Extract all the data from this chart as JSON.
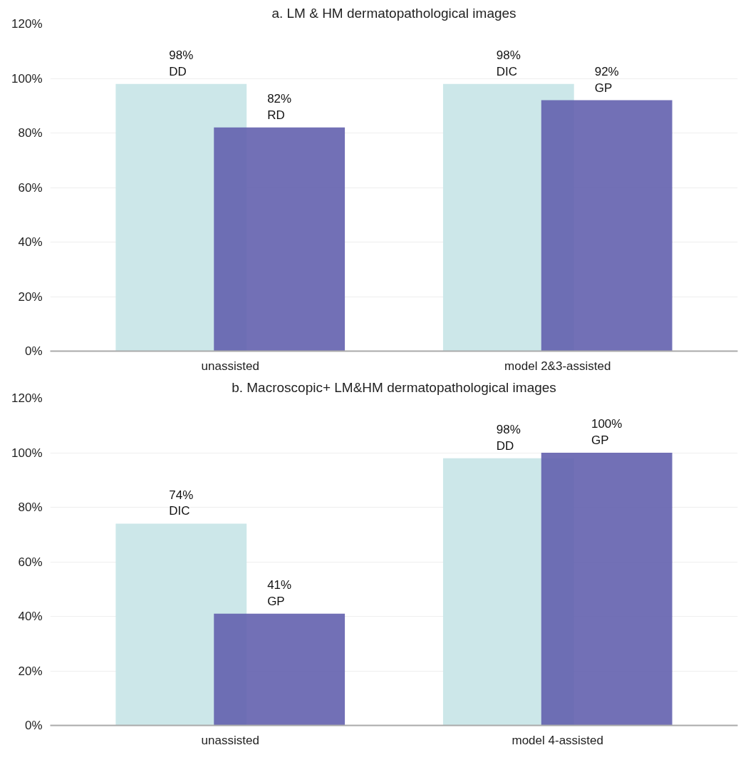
{
  "chart_data": [
    {
      "type": "bar",
      "title": "a. LM & HM dermatopathological images",
      "categories": [
        "unassisted",
        "model 2&3-assisted"
      ],
      "series": [
        {
          "color": "#cce7e9",
          "values": [
            98,
            98
          ],
          "value_labels": [
            "98%\nDD",
            "98%\nDIC"
          ]
        },
        {
          "color": "#6361ae",
          "values": [
            82,
            92
          ],
          "value_labels": [
            "82%\nRD",
            "92%\nGP"
          ]
        }
      ],
      "ylim": [
        0,
        120
      ],
      "yticks": [
        {
          "value": 0,
          "label": "0%"
        },
        {
          "value": 20,
          "label": "20%"
        },
        {
          "value": 40,
          "label": "40%"
        },
        {
          "value": 60,
          "label": "60%"
        },
        {
          "value": 80,
          "label": "80%"
        },
        {
          "value": 100,
          "label": "100%"
        },
        {
          "value": 120,
          "label": "120%"
        }
      ],
      "grid": "y"
    },
    {
      "type": "bar",
      "title": "b. Macroscopic+ LM&HM dermatopathological images",
      "categories": [
        "unassisted",
        "model 4-assisted"
      ],
      "series": [
        {
          "color": "#cce7e9",
          "values": [
            74,
            98
          ],
          "value_labels": [
            "74%\nDIC",
            "98%\nDD"
          ]
        },
        {
          "color": "#6361ae",
          "values": [
            41,
            100
          ],
          "value_labels": [
            "41%\nGP",
            "100%\nGP"
          ]
        }
      ],
      "ylim": [
        0,
        120
      ],
      "yticks": [
        {
          "value": 0,
          "label": "0%"
        },
        {
          "value": 20,
          "label": "20%"
        },
        {
          "value": 40,
          "label": "40%"
        },
        {
          "value": 60,
          "label": "60%"
        },
        {
          "value": 80,
          "label": "80%"
        },
        {
          "value": 100,
          "label": "100%"
        },
        {
          "value": 120,
          "label": "120%"
        }
      ],
      "grid": "y"
    }
  ]
}
